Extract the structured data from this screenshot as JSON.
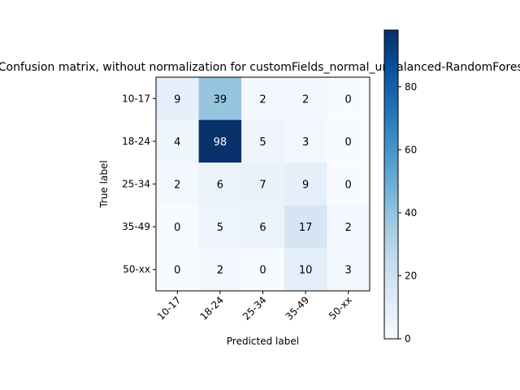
{
  "chart_data": {
    "type": "heatmap",
    "title": "Confusion matrix, without normalization for customFields_normal_unbalanced-RandomForest",
    "xlabel": "Predicted label",
    "ylabel": "True label",
    "x_categories": [
      "10-17",
      "18-24",
      "25-34",
      "35-49",
      "50-xx"
    ],
    "y_categories": [
      "10-17",
      "18-24",
      "25-34",
      "35-49",
      "50-xx"
    ],
    "values": [
      [
        9,
        39,
        2,
        2,
        0
      ],
      [
        4,
        98,
        5,
        3,
        0
      ],
      [
        2,
        6,
        7,
        9,
        0
      ],
      [
        0,
        5,
        6,
        17,
        2
      ],
      [
        0,
        2,
        0,
        10,
        3
      ]
    ],
    "colormap": "Blues",
    "color_range": [
      0,
      98
    ],
    "colorbar_ticks": [
      "0",
      "20",
      "40",
      "60",
      "80"
    ],
    "colors": {
      "low": "#f7fbff",
      "high": "#08306b"
    }
  }
}
